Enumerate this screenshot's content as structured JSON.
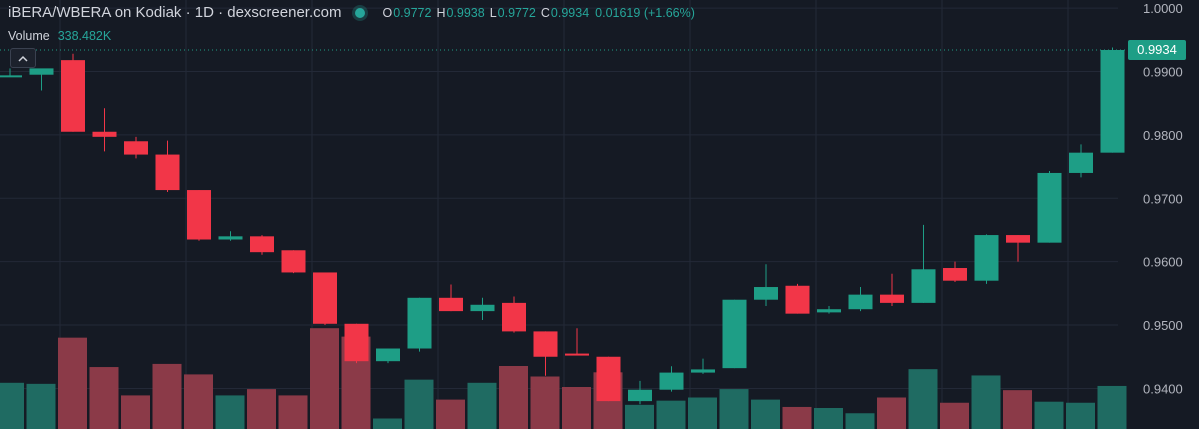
{
  "header": {
    "pair_title": "iBERA/WBERA on Kodiak · 1D · dexscreener.com",
    "ohlc": {
      "o_label": "O",
      "o_value": "0.9772",
      "h_label": "H",
      "h_value": "0.9938",
      "l_label": "L",
      "l_value": "0.9772",
      "c_label": "C",
      "c_value": "0.9934",
      "change": "0.01619 (+1.66%)"
    },
    "volume_label": "Volume",
    "volume_value": "338.482K"
  },
  "last_price_label": "0.9934",
  "colors": {
    "background": "#151a24",
    "up": "#1e9e86",
    "down": "#f23648",
    "up_volume": "#1f6b62",
    "down_volume": "#8b3a48",
    "grid": "#232937",
    "axis_text": "#b2b5be",
    "accent": "#26a69a"
  },
  "chart_data": {
    "type": "candlestick",
    "y_axis_ticks": [
      "1.0000",
      "0.9900",
      "0.9800",
      "0.9700",
      "0.9600",
      "0.9500",
      "0.9400"
    ],
    "ylim": [
      0.9336,
      1.0005
    ],
    "grid": true,
    "last_price": 0.9934,
    "candles": [
      {
        "o": 0.9893,
        "h": 0.9905,
        "l": 0.9893,
        "c": 0.9894,
        "v": 0.44
      },
      {
        "o": 0.9895,
        "h": 0.9903,
        "l": 0.987,
        "c": 0.9905,
        "v": 0.43
      },
      {
        "o": 0.9918,
        "h": 0.9928,
        "l": 0.9805,
        "c": 0.9805,
        "v": 0.87
      },
      {
        "o": 0.9805,
        "h": 0.9842,
        "l": 0.9774,
        "c": 0.9797,
        "v": 0.59
      },
      {
        "o": 0.979,
        "h": 0.9797,
        "l": 0.9763,
        "c": 0.9769,
        "v": 0.32
      },
      {
        "o": 0.9769,
        "h": 0.9791,
        "l": 0.971,
        "c": 0.9713,
        "v": 0.62
      },
      {
        "o": 0.9713,
        "h": 0.9713,
        "l": 0.9633,
        "c": 0.9635,
        "v": 0.52
      },
      {
        "o": 0.9635,
        "h": 0.9648,
        "l": 0.9633,
        "c": 0.964,
        "v": 0.32
      },
      {
        "o": 0.964,
        "h": 0.9642,
        "l": 0.9611,
        "c": 0.9615,
        "v": 0.38
      },
      {
        "o": 0.9618,
        "h": 0.9618,
        "l": 0.9582,
        "c": 0.9583,
        "v": 0.32
      },
      {
        "o": 0.9583,
        "h": 0.9583,
        "l": 0.95,
        "c": 0.9502,
        "v": 0.96
      },
      {
        "o": 0.9502,
        "h": 0.9502,
        "l": 0.944,
        "c": 0.9443,
        "v": 0.88
      },
      {
        "o": 0.9443,
        "h": 0.9463,
        "l": 0.944,
        "c": 0.9463,
        "v": 0.1
      },
      {
        "o": 0.9463,
        "h": 0.9543,
        "l": 0.9458,
        "c": 0.9543,
        "v": 0.47
      },
      {
        "o": 0.9543,
        "h": 0.9564,
        "l": 0.9522,
        "c": 0.9522,
        "v": 0.28
      },
      {
        "o": 0.9522,
        "h": 0.9543,
        "l": 0.9508,
        "c": 0.9532,
        "v": 0.44
      },
      {
        "o": 0.9535,
        "h": 0.9545,
        "l": 0.9488,
        "c": 0.949,
        "v": 0.6
      },
      {
        "o": 0.949,
        "h": 0.949,
        "l": 0.942,
        "c": 0.945,
        "v": 0.5
      },
      {
        "o": 0.9455,
        "h": 0.9495,
        "l": 0.9452,
        "c": 0.9452,
        "v": 0.4
      },
      {
        "o": 0.945,
        "h": 0.945,
        "l": 0.938,
        "c": 0.938,
        "v": 0.54
      },
      {
        "o": 0.938,
        "h": 0.9412,
        "l": 0.9375,
        "c": 0.9398,
        "v": 0.23
      },
      {
        "o": 0.9398,
        "h": 0.9435,
        "l": 0.9395,
        "c": 0.9425,
        "v": 0.27
      },
      {
        "o": 0.9425,
        "h": 0.9447,
        "l": 0.9423,
        "c": 0.943,
        "v": 0.3
      },
      {
        "o": 0.9432,
        "h": 0.954,
        "l": 0.9432,
        "c": 0.954,
        "v": 0.38
      },
      {
        "o": 0.954,
        "h": 0.9596,
        "l": 0.953,
        "c": 0.956,
        "v": 0.28
      },
      {
        "o": 0.9562,
        "h": 0.9565,
        "l": 0.9518,
        "c": 0.9518,
        "v": 0.21
      },
      {
        "o": 0.952,
        "h": 0.953,
        "l": 0.9518,
        "c": 0.9525,
        "v": 0.2
      },
      {
        "o": 0.9525,
        "h": 0.956,
        "l": 0.9522,
        "c": 0.9548,
        "v": 0.15
      },
      {
        "o": 0.9548,
        "h": 0.9581,
        "l": 0.953,
        "c": 0.9535,
        "v": 0.3
      },
      {
        "o": 0.9535,
        "h": 0.9658,
        "l": 0.9535,
        "c": 0.9588,
        "v": 0.57
      },
      {
        "o": 0.959,
        "h": 0.96,
        "l": 0.9568,
        "c": 0.957,
        "v": 0.25
      },
      {
        "o": 0.957,
        "h": 0.9643,
        "l": 0.9565,
        "c": 0.9642,
        "v": 0.51
      },
      {
        "o": 0.9642,
        "h": 0.9642,
        "l": 0.96,
        "c": 0.963,
        "v": 0.37
      },
      {
        "o": 0.963,
        "h": 0.9743,
        "l": 0.963,
        "c": 0.974,
        "v": 0.26
      },
      {
        "o": 0.974,
        "h": 0.9785,
        "l": 0.9733,
        "c": 0.9772,
        "v": 0.25
      },
      {
        "o": 0.9772,
        "h": 0.9938,
        "l": 0.9772,
        "c": 0.9934,
        "v": 0.41
      }
    ]
  }
}
